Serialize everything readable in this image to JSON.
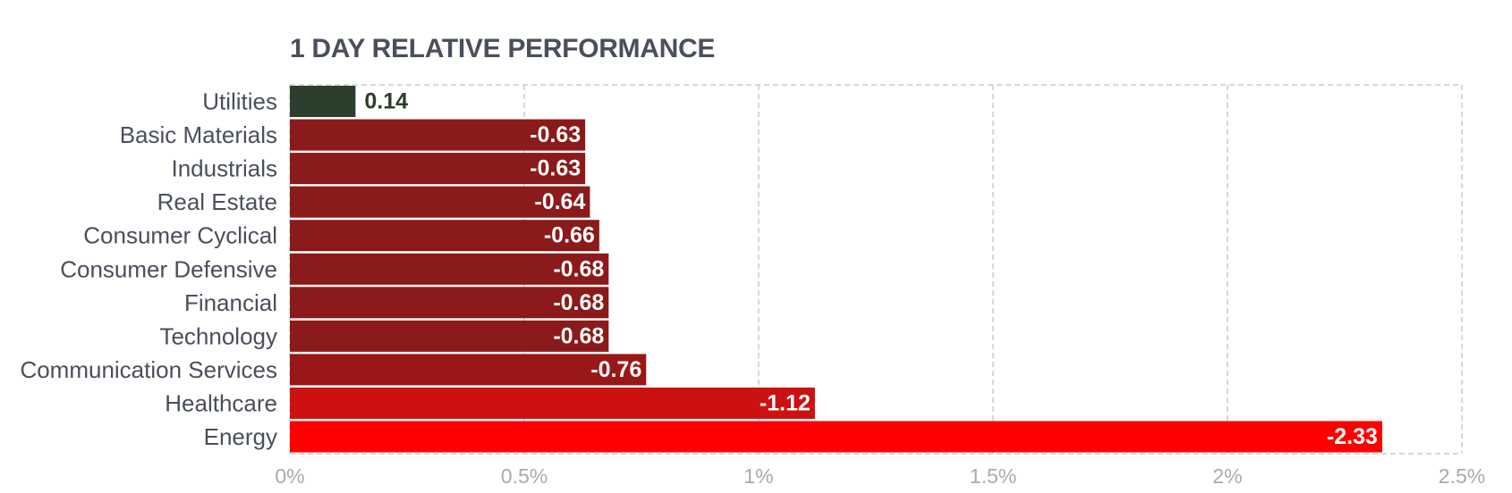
{
  "chart_data": {
    "type": "bar",
    "orientation": "horizontal",
    "title": "1 DAY RELATIVE PERFORMANCE",
    "categories": [
      "Utilities",
      "Basic Materials",
      "Industrials",
      "Real Estate",
      "Consumer Cyclical",
      "Consumer Defensive",
      "Financial",
      "Technology",
      "Communication Services",
      "Healthcare",
      "Energy"
    ],
    "values": [
      0.14,
      -0.63,
      -0.63,
      -0.64,
      -0.66,
      -0.68,
      -0.68,
      -0.68,
      -0.76,
      -1.12,
      -2.33
    ],
    "value_labels": [
      "0.14",
      "-0.63",
      "-0.63",
      "-0.64",
      "-0.66",
      "-0.68",
      "-0.68",
      "-0.68",
      "-0.76",
      "-1.12",
      "-2.33"
    ],
    "bar_colors": [
      "#2c3e2c",
      "#8b1a1a",
      "#8b1a1a",
      "#8b1a1a",
      "#8b1a1a",
      "#8b1a1a",
      "#8b1a1a",
      "#8b1a1a",
      "#9a1717",
      "#cc1111",
      "#ff0000"
    ],
    "x_ticks": [
      0,
      0.5,
      1,
      1.5,
      2,
      2.5
    ],
    "x_tick_labels": [
      "0%",
      "0.5%",
      "1%",
      "1.5%",
      "2%",
      "2.5%"
    ],
    "xlim": [
      0,
      2.5
    ],
    "x_scale": "magnitude",
    "grid": true,
    "colors": {
      "positive_label": "#2c3e2c",
      "negative_label": "#ffffff",
      "gridline": "#cccccc",
      "category_text": "#4a4f5c",
      "tick_text": "#aaaaaa",
      "title_text": "#4a4f5c"
    }
  }
}
